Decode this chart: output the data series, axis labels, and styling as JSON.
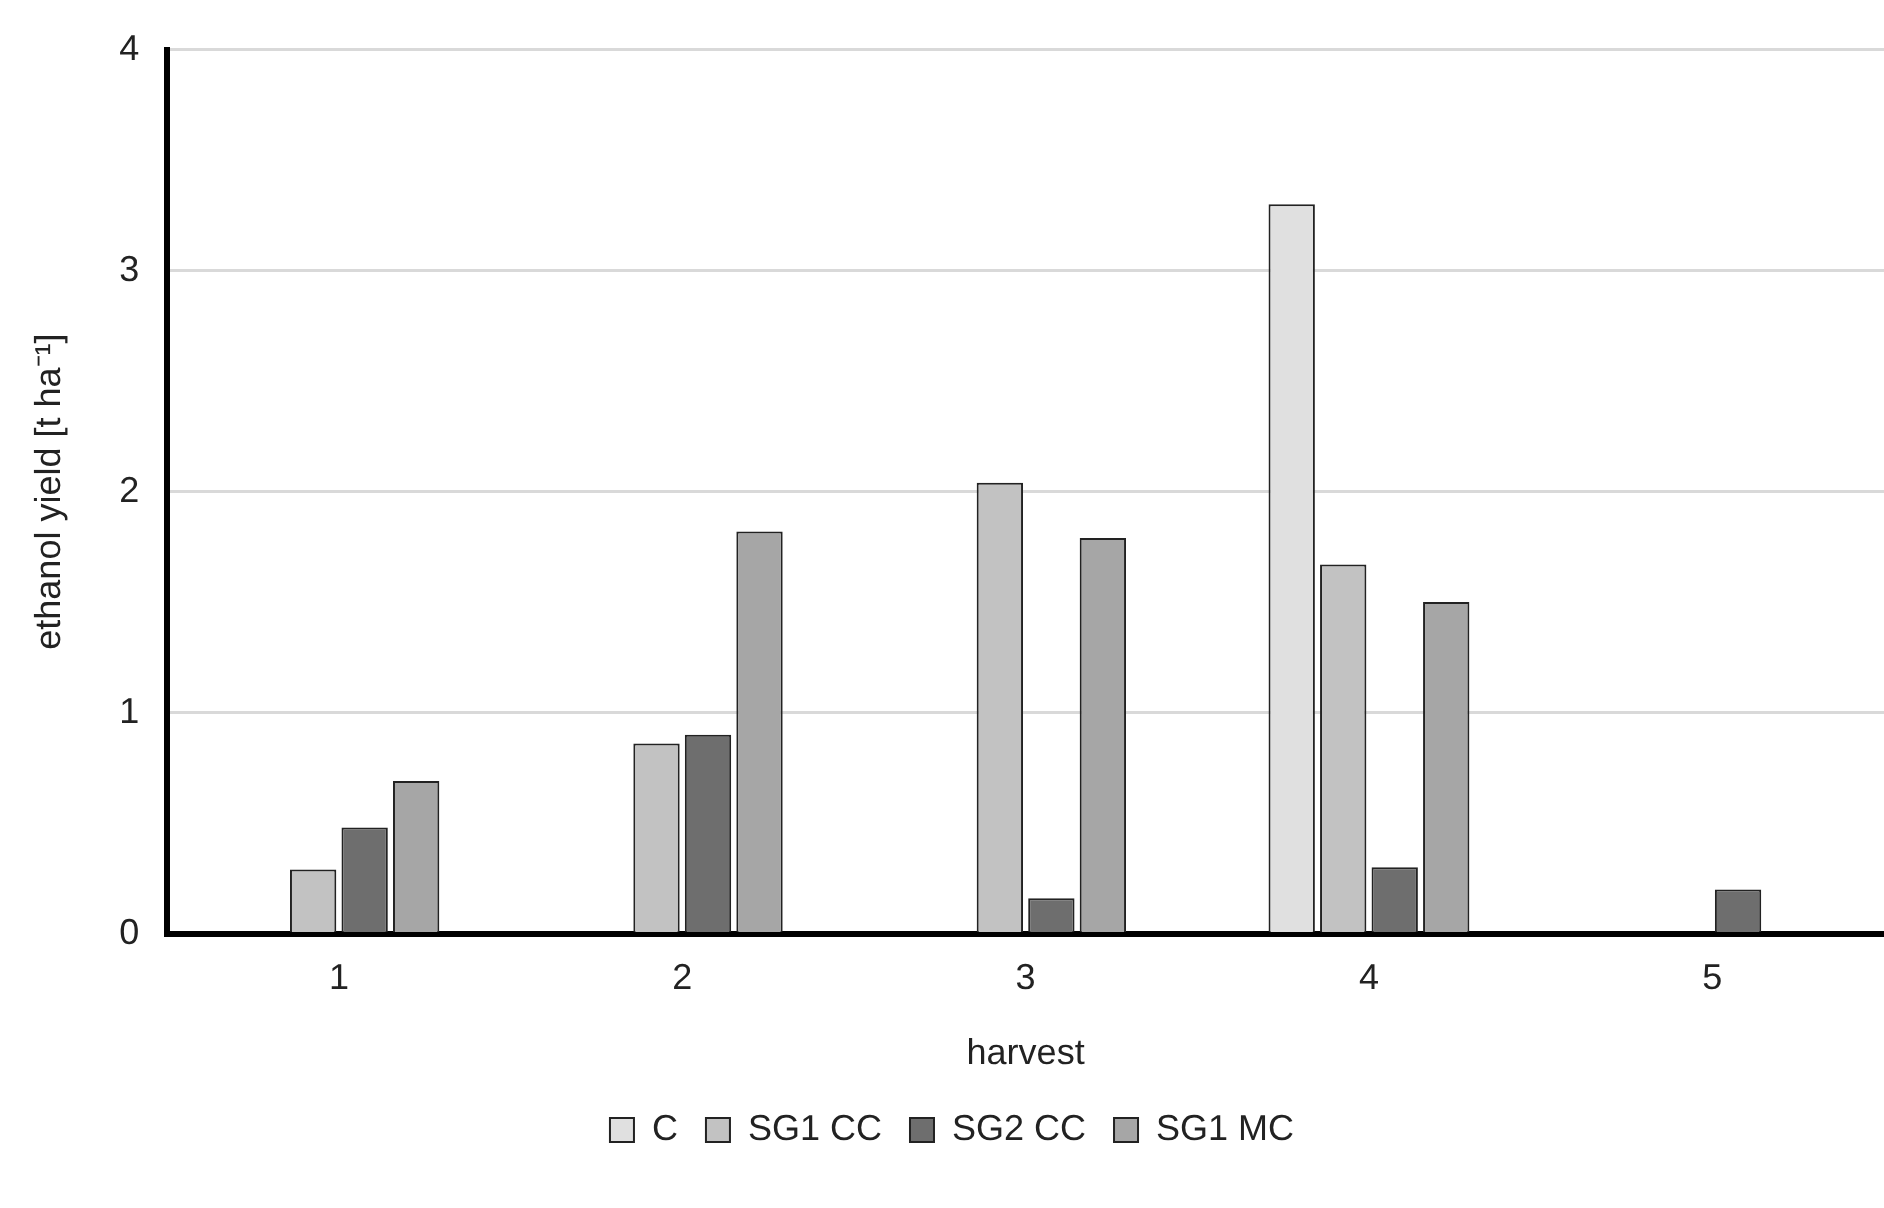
{
  "chart_data": {
    "type": "bar",
    "xlabel": "harvest",
    "ylabel": "ethanol yield [t ha⁻¹]",
    "categories": [
      "1",
      "2",
      "3",
      "4",
      "5"
    ],
    "series": [
      {
        "name": "C",
        "color": "#e0e0e0",
        "values": [
          null,
          null,
          null,
          3.3,
          null
        ]
      },
      {
        "name": "SG1 CC",
        "color": "#c2c2c2",
        "values": [
          0.29,
          0.86,
          2.04,
          1.67,
          null
        ]
      },
      {
        "name": "SG2 CC",
        "color": "#6e6e6e",
        "values": [
          0.48,
          0.9,
          0.16,
          0.3,
          0.2
        ]
      },
      {
        "name": "SG1 MC",
        "color": "#a6a6a6",
        "values": [
          0.69,
          1.82,
          1.79,
          1.5,
          null
        ]
      }
    ],
    "ylim": [
      0,
      4
    ],
    "yticks": [
      0,
      1,
      2,
      3,
      4
    ],
    "grid": "y",
    "legend": "bottom"
  }
}
